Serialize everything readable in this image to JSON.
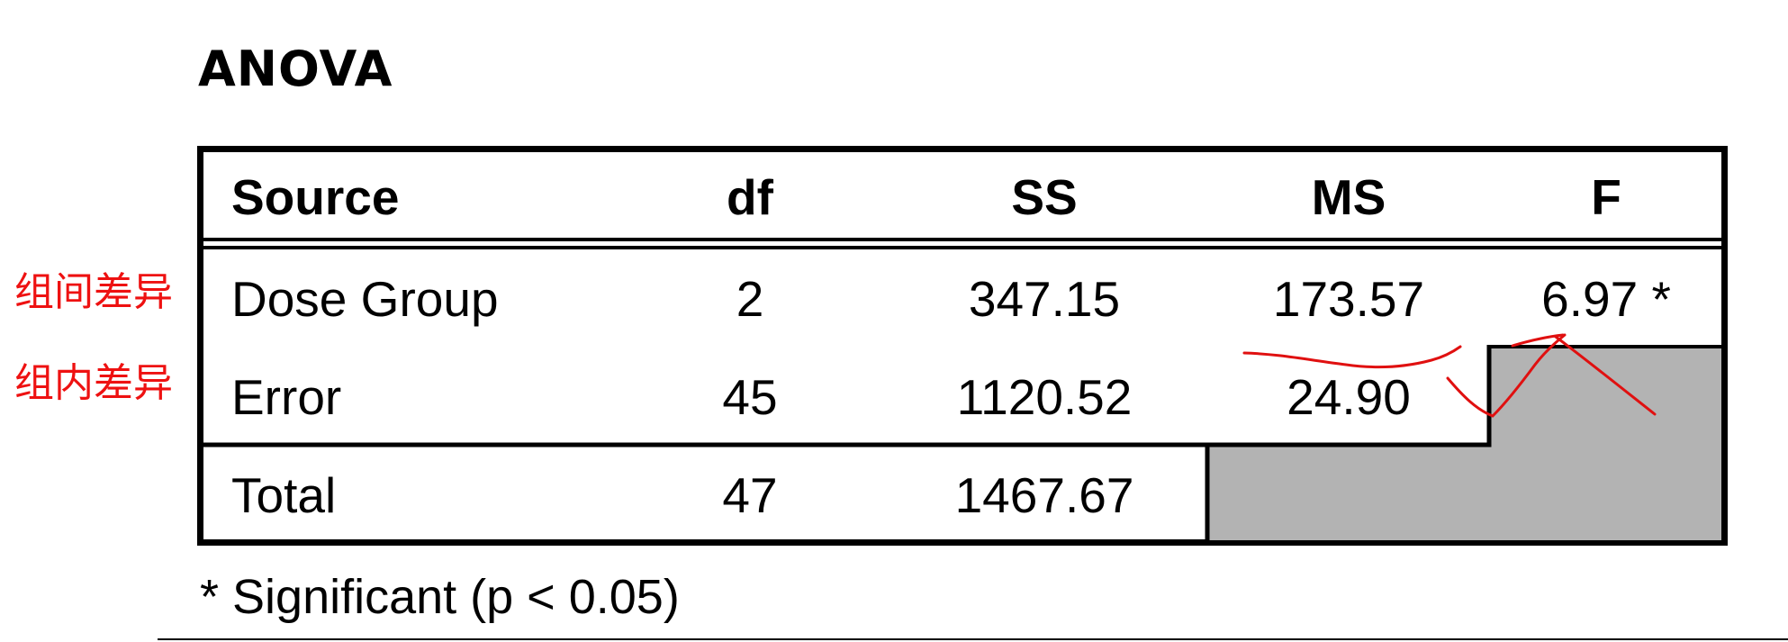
{
  "title": "ANOVA",
  "table": {
    "headers": [
      "Source",
      "df",
      "SS",
      "MS",
      "F"
    ],
    "rows": [
      {
        "source": "Dose Group",
        "df": "2",
        "ss": "347.15",
        "ms": "173.57",
        "f": "6.97 *"
      },
      {
        "source": "Error",
        "df": "45",
        "ss": "1120.52",
        "ms": "24.90",
        "f": ""
      },
      {
        "source": "Total",
        "df": "47",
        "ss": "1467.67",
        "ms": "",
        "f": ""
      }
    ]
  },
  "annotations": {
    "between_groups": "组间差异",
    "within_groups": "组内差异"
  },
  "footnote": "* Significant (p < 0.05)",
  "colors": {
    "border": "#000000",
    "shaded_cell": "#b3b3b3",
    "annotation": "#ee1111"
  }
}
